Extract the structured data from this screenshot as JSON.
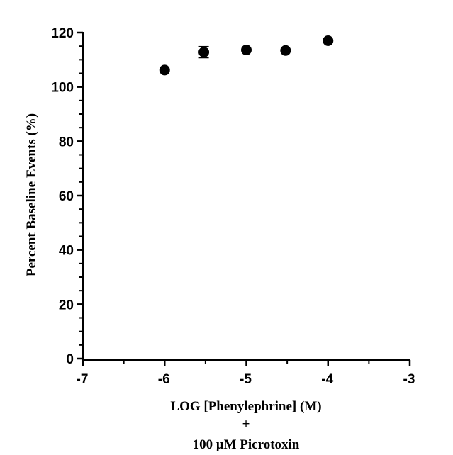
{
  "chart_data": {
    "type": "scatter",
    "title": "",
    "xlabel": "LOG [Phenylephrine] (M)",
    "xlabel_line2": "+",
    "xlabel_line3": "100 μM Picrotoxin",
    "ylabel": "Percent Baseline Events (%)",
    "xlim": [
      -7,
      -3
    ],
    "ylim": [
      0,
      120
    ],
    "x_ticks": [
      -7,
      -6,
      -5,
      -4,
      -3
    ],
    "y_ticks": [
      0,
      20,
      40,
      60,
      80,
      100,
      120
    ],
    "x_tick_labels": [
      "-7",
      "-6",
      "-5",
      "-4",
      "-3"
    ],
    "y_tick_labels": [
      "0",
      "20",
      "40",
      "60",
      "80",
      "100",
      "120"
    ],
    "grid": false,
    "legend": "none",
    "series": [
      {
        "x": [
          -6,
          -5.52,
          -5,
          -4.52,
          -4
        ],
        "y": [
          106.2,
          112.8,
          113.6,
          113.4,
          117
        ],
        "error": [
          0,
          2,
          0,
          0,
          0
        ]
      }
    ],
    "marker_color": "#000000"
  }
}
